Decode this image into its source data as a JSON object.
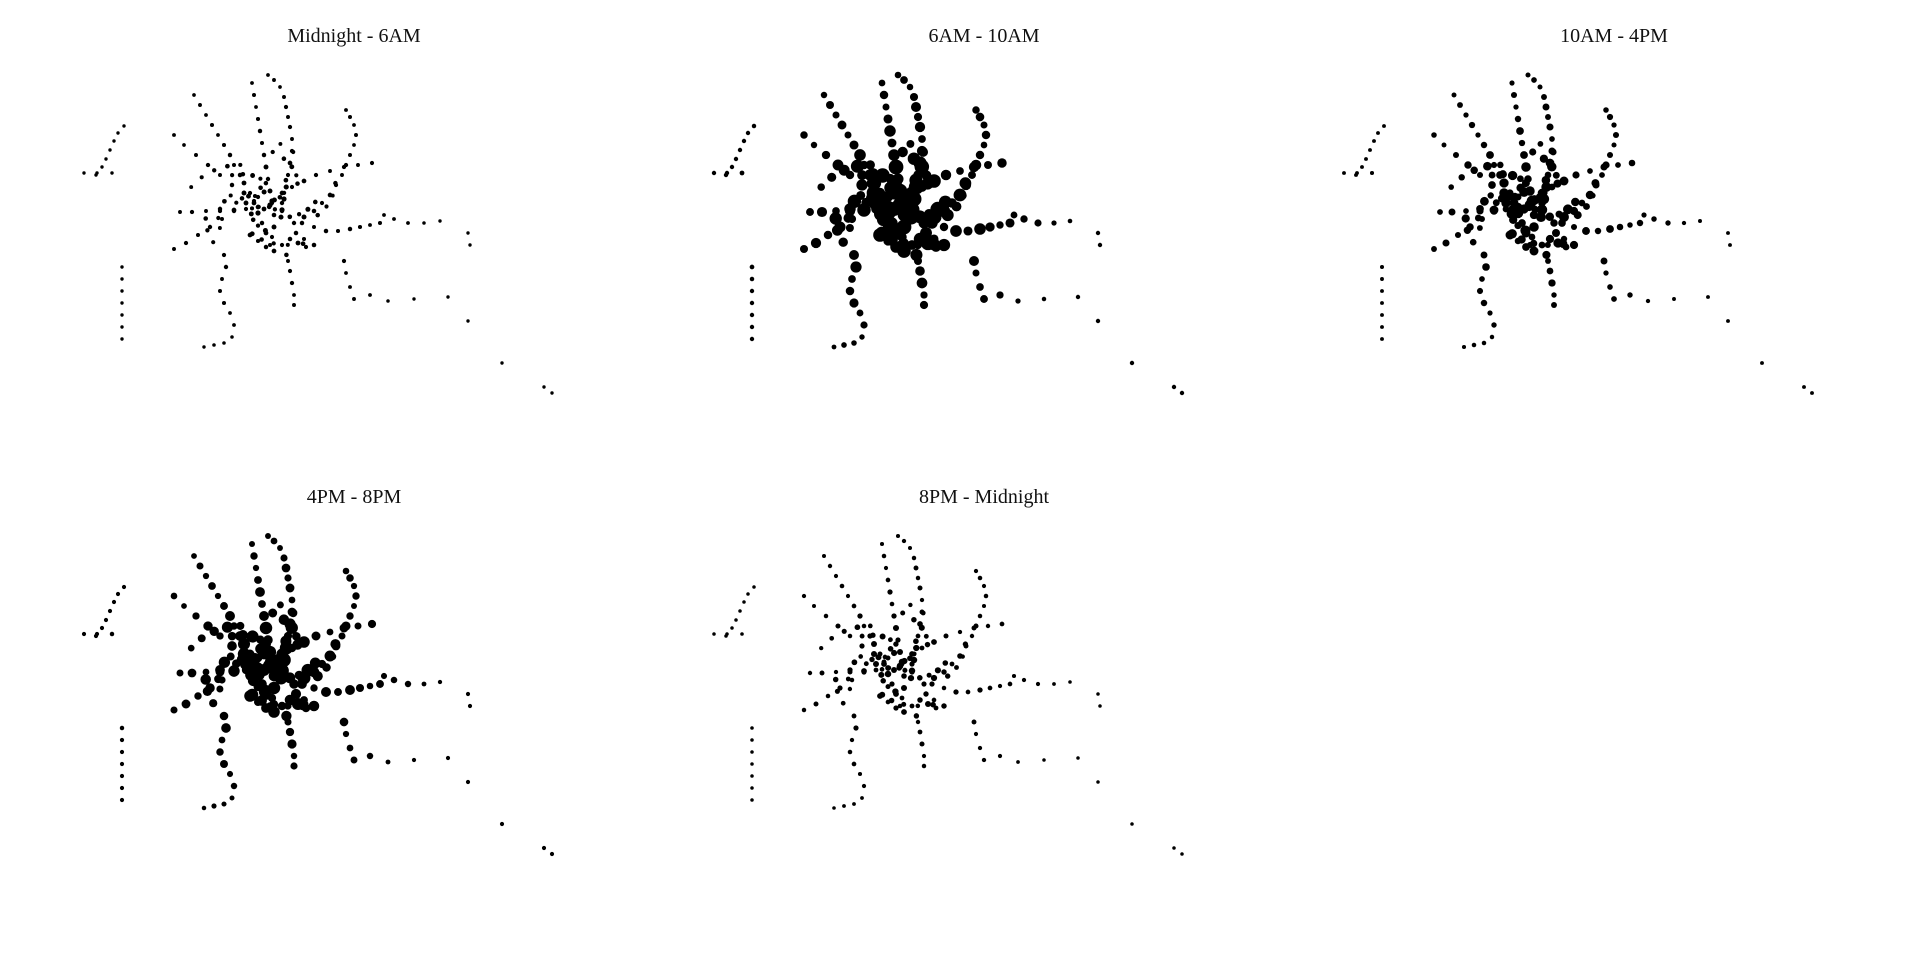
{
  "chart_data": {
    "type": "scatter",
    "dot_color": "#000000",
    "grid": false,
    "panels": [
      {
        "title": "Midnight - 6AM",
        "activity": 0.15
      },
      {
        "title": "6AM - 10AM",
        "activity": 1.0
      },
      {
        "title": "10AM - 4PM",
        "activity": 0.55
      },
      {
        "title": "4PM - 8PM",
        "activity": 0.8
      },
      {
        "title": "8PM - Midnight",
        "activity": 0.25
      }
    ]
  }
}
